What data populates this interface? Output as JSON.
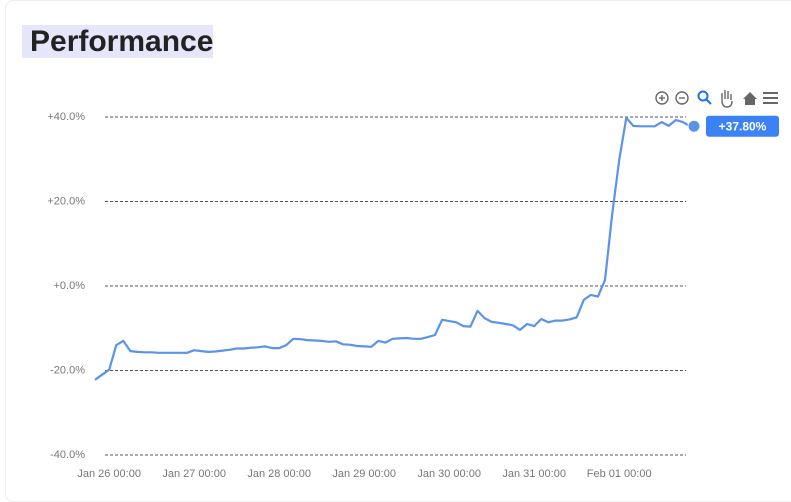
{
  "header": {
    "title": "Performance"
  },
  "chart_data": {
    "type": "line",
    "categories": [
      null,
      null,
      "Jan 26 00:00",
      null,
      null,
      null,
      null,
      null,
      null,
      null,
      null,
      null,
      null,
      null,
      "Jan 27 00:00",
      null,
      null,
      null,
      null,
      null,
      null,
      null,
      null,
      null,
      null,
      null,
      "Jan 28 00:00",
      null,
      null,
      null,
      null,
      null,
      null,
      null,
      null,
      null,
      null,
      null,
      "Jan 29 00:00",
      null,
      null,
      null,
      null,
      null,
      null,
      null,
      null,
      null,
      null,
      null,
      "Jan 30 00:00",
      null,
      null,
      null,
      null,
      null,
      null,
      null,
      null,
      null,
      null,
      null,
      "Jan 31 00:00",
      null,
      null,
      null,
      null,
      null,
      null,
      null,
      null,
      null,
      null,
      null,
      "Feb 01 00:00",
      null,
      null,
      null,
      null,
      null,
      null,
      null,
      null,
      null,
      null
    ],
    "series": [
      {
        "color": "#5b93e8",
        "values": [
          -22.2,
          -21,
          -19.8,
          -14,
          -13,
          -15.4,
          -15.6,
          -15.7,
          -15.7,
          -15.8,
          -15.8,
          -15.8,
          -15.8,
          -15.8,
          -15.2,
          -15.4,
          -15.6,
          -15.5,
          -15.3,
          -15.1,
          -14.8,
          -14.8,
          -14.6,
          -14.5,
          -14.3,
          -14.7,
          -14.7,
          -14,
          -12.5,
          -12.6,
          -12.8,
          -12.9,
          -13,
          -13.2,
          -13.1,
          -13.8,
          -13.9,
          -14.2,
          -14.3,
          -14.4,
          -13,
          -13.4,
          -12.5,
          -12.4,
          -12.3,
          -12.5,
          -12.5,
          -12.1,
          -11.6,
          -8,
          -8.3,
          -8.6,
          -9.5,
          -9.6,
          -5.9,
          -7.6,
          -8.5,
          -8.7,
          -9,
          -9.3,
          -10.4,
          -9,
          -9.5,
          -7.8,
          -8.6,
          -8.2,
          -8.2,
          -7.9,
          -7.4,
          -3.3,
          -2.1,
          -2.5,
          1.4,
          16.8,
          29.8,
          39.8,
          37.9,
          37.8,
          37.8,
          37.8,
          38.8,
          37.9,
          39.3,
          38.8,
          37.8
        ],
        "value_labels": [
          null,
          null,
          null,
          null,
          null,
          null,
          null,
          null,
          null,
          null,
          null,
          null,
          null,
          null,
          null,
          null,
          null,
          null,
          null,
          null,
          null,
          null,
          null,
          null,
          null,
          null,
          null,
          null,
          null,
          null,
          null,
          null,
          null,
          null,
          null,
          null,
          null,
          null,
          null,
          null,
          null,
          null,
          null,
          null,
          null,
          null,
          null,
          null,
          null,
          null,
          null,
          null,
          null,
          null,
          null,
          null,
          null,
          null,
          null,
          null,
          null,
          null,
          null,
          null,
          null,
          null,
          null,
          null,
          null,
          null,
          null,
          null,
          null,
          null,
          null,
          null,
          null,
          null,
          null,
          null,
          null,
          null,
          null,
          null,
          "+37.80%"
        ]
      }
    ],
    "ylim": [
      -40,
      40
    ],
    "yticks": [
      {
        "value": 40,
        "label": "+40.0%"
      },
      {
        "value": 20,
        "label": "+20.0%"
      },
      {
        "value": 0,
        "label": "+0.0%"
      },
      {
        "value": -20,
        "label": "-20.0%"
      },
      {
        "value": -40,
        "label": "-40.0%"
      }
    ],
    "grid": true
  }
}
